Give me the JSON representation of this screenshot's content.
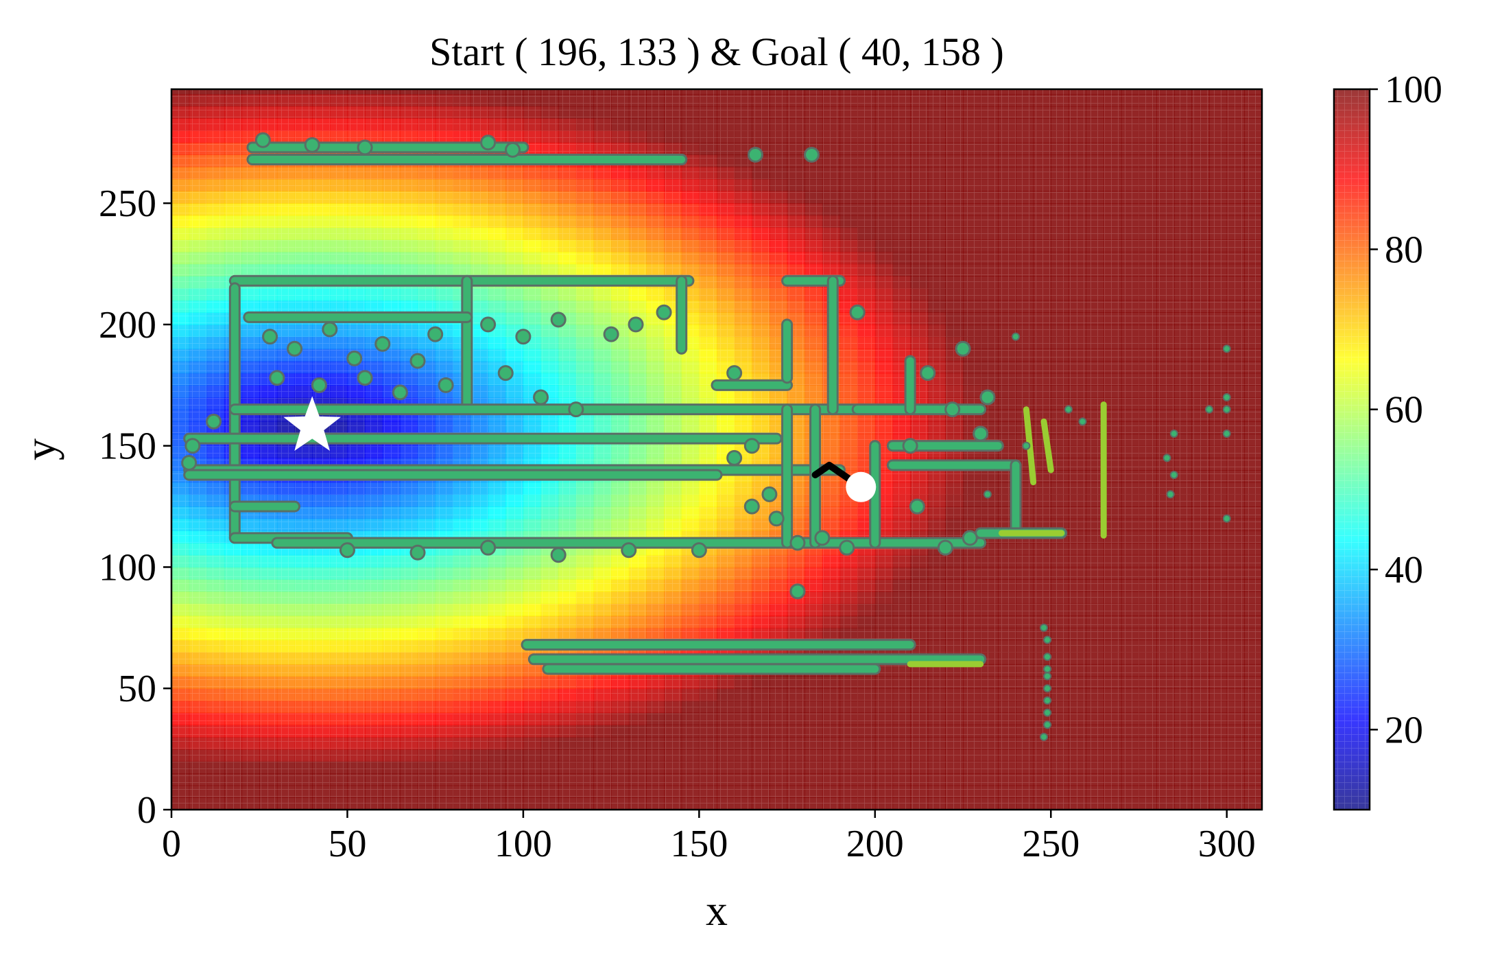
{
  "chart_data": {
    "type": "heatmap",
    "title": "Start ( 196, 133 ) & Goal ( 40, 158 )",
    "xlabel": "x",
    "ylabel": "y",
    "xlim": [
      0,
      310
    ],
    "ylim": [
      0,
      297
    ],
    "xticks": [
      "0",
      "50",
      "100",
      "150",
      "200",
      "250",
      "300"
    ],
    "xtick_values": [
      0,
      50,
      100,
      150,
      200,
      250,
      300
    ],
    "yticks": [
      "0",
      "50",
      "100",
      "150",
      "200",
      "250"
    ],
    "ytick_values": [
      0,
      50,
      100,
      150,
      200,
      250
    ],
    "colorbar": {
      "range": [
        10,
        100
      ],
      "ticks": [
        "20",
        "40",
        "60",
        "80",
        "100"
      ],
      "tick_values": [
        20,
        40,
        60,
        80,
        100
      ],
      "colormap": "jet"
    },
    "field": {
      "description_source": "cost-to-goal distance field centered near goal",
      "center": [
        40,
        158
      ],
      "min_value": 10,
      "saturation_distance": 190
    },
    "start": [
      196,
      133
    ],
    "goal": [
      40,
      158
    ],
    "start_marker": "white-circle",
    "goal_marker": "white-star",
    "path": [
      [
        183,
        138
      ],
      [
        187,
        142
      ],
      [
        189,
        140
      ],
      [
        193,
        136
      ],
      [
        196,
        133
      ]
    ],
    "obstacle_color": "#3cb371",
    "obstacle_edge_color": "#5a6e66",
    "walls": [
      [
        [
          23,
          268
        ],
        [
          145,
          268
        ]
      ],
      [
        [
          23,
          273
        ],
        [
          100,
          273
        ]
      ],
      [
        [
          18,
          218
        ],
        [
          147,
          218
        ]
      ],
      [
        [
          18,
          215
        ],
        [
          18,
          112
        ]
      ],
      [
        [
          84,
          218
        ],
        [
          84,
          165
        ]
      ],
      [
        [
          22,
          203
        ],
        [
          84,
          203
        ]
      ],
      [
        [
          18,
          165
        ],
        [
          230,
          165
        ]
      ],
      [
        [
          5,
          153
        ],
        [
          172,
          153
        ]
      ],
      [
        [
          5,
          140
        ],
        [
          190,
          140
        ]
      ],
      [
        [
          5,
          138
        ],
        [
          155,
          138
        ]
      ],
      [
        [
          18,
          112
        ],
        [
          50,
          112
        ]
      ],
      [
        [
          18,
          125
        ],
        [
          35,
          125
        ]
      ],
      [
        [
          30,
          110
        ],
        [
          230,
          110
        ]
      ],
      [
        [
          145,
          218
        ],
        [
          145,
          190
        ]
      ],
      [
        [
          155,
          175
        ],
        [
          175,
          175
        ]
      ],
      [
        [
          175,
          165
        ],
        [
          175,
          110
        ]
      ],
      [
        [
          175,
          200
        ],
        [
          175,
          178
        ]
      ],
      [
        [
          175,
          218
        ],
        [
          190,
          218
        ]
      ],
      [
        [
          188,
          218
        ],
        [
          188,
          165
        ]
      ],
      [
        [
          195,
          165
        ],
        [
          210,
          165
        ]
      ],
      [
        [
          210,
          185
        ],
        [
          210,
          165
        ]
      ],
      [
        [
          200,
          150
        ],
        [
          200,
          110
        ]
      ],
      [
        [
          205,
          150
        ],
        [
          235,
          150
        ]
      ],
      [
        [
          205,
          142
        ],
        [
          240,
          142
        ]
      ],
      [
        [
          240,
          142
        ],
        [
          240,
          114
        ]
      ],
      [
        [
          230,
          114
        ],
        [
          253,
          114
        ]
      ],
      [
        [
          183,
          165
        ],
        [
          183,
          110
        ]
      ],
      [
        [
          101,
          68
        ],
        [
          210,
          68
        ]
      ],
      [
        [
          103,
          62
        ],
        [
          230,
          62
        ]
      ],
      [
        [
          107,
          58
        ],
        [
          200,
          58
        ]
      ]
    ],
    "light_walls": [
      [
        [
          243,
          165
        ],
        [
          245,
          135
        ]
      ],
      [
        [
          248,
          160
        ],
        [
          250,
          140
        ]
      ],
      [
        [
          265,
          167
        ],
        [
          265,
          113
        ]
      ],
      [
        [
          210,
          60
        ],
        [
          230,
          60
        ]
      ],
      [
        [
          236,
          114
        ],
        [
          253,
          114
        ]
      ]
    ],
    "blobs": [
      [
        28,
        195
      ],
      [
        35,
        190
      ],
      [
        45,
        198
      ],
      [
        52,
        186
      ],
      [
        60,
        192
      ],
      [
        70,
        185
      ],
      [
        75,
        196
      ],
      [
        30,
        178
      ],
      [
        42,
        175
      ],
      [
        55,
        178
      ],
      [
        65,
        172
      ],
      [
        78,
        175
      ],
      [
        90,
        200
      ],
      [
        100,
        195
      ],
      [
        110,
        202
      ],
      [
        125,
        196
      ],
      [
        132,
        200
      ],
      [
        140,
        205
      ],
      [
        95,
        180
      ],
      [
        105,
        170
      ],
      [
        115,
        165
      ],
      [
        160,
        180
      ],
      [
        165,
        150
      ],
      [
        160,
        145
      ],
      [
        170,
        130
      ],
      [
        165,
        125
      ],
      [
        172,
        120
      ],
      [
        178,
        110
      ],
      [
        185,
        112
      ],
      [
        192,
        108
      ],
      [
        210,
        150
      ],
      [
        212,
        125
      ],
      [
        220,
        108
      ],
      [
        227,
        112
      ],
      [
        150,
        107
      ],
      [
        130,
        107
      ],
      [
        110,
        105
      ],
      [
        90,
        108
      ],
      [
        70,
        106
      ],
      [
        50,
        107
      ],
      [
        178,
        90
      ],
      [
        166,
        270
      ],
      [
        182,
        270
      ],
      [
        26,
        276
      ],
      [
        40,
        274
      ],
      [
        55,
        273
      ],
      [
        90,
        275
      ],
      [
        97,
        272
      ],
      [
        12,
        160
      ],
      [
        6,
        150
      ],
      [
        5,
        143
      ],
      [
        230,
        155
      ],
      [
        232,
        170
      ],
      [
        215,
        180
      ],
      [
        222,
        165
      ],
      [
        225,
        190
      ],
      [
        195,
        205
      ]
    ],
    "scattered_points": [
      [
        248,
        75
      ],
      [
        249,
        70
      ],
      [
        249,
        63
      ],
      [
        249,
        58
      ],
      [
        249,
        55
      ],
      [
        249,
        50
      ],
      [
        249,
        45
      ],
      [
        249,
        40
      ],
      [
        249,
        35
      ],
      [
        248,
        30
      ],
      [
        285,
        138
      ],
      [
        284,
        130
      ],
      [
        283,
        145
      ],
      [
        285,
        155
      ],
      [
        295,
        165
      ],
      [
        300,
        190
      ],
      [
        300,
        170
      ],
      [
        300,
        165
      ],
      [
        300,
        155
      ],
      [
        300,
        120
      ],
      [
        255,
        165
      ],
      [
        259,
        160
      ],
      [
        240,
        195
      ],
      [
        243,
        150
      ],
      [
        232,
        130
      ]
    ]
  }
}
